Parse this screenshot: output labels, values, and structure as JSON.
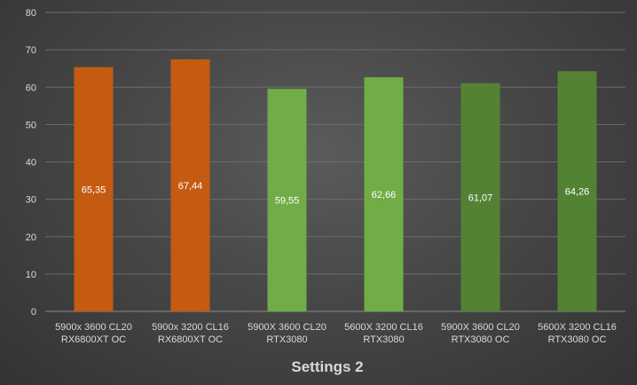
{
  "chart_data": {
    "type": "bar",
    "title": "Settings 2",
    "xlabel": "",
    "ylabel": "",
    "ylim": [
      0,
      80
    ],
    "yticks": [
      0,
      10,
      20,
      30,
      40,
      50,
      60,
      70,
      80
    ],
    "grid": true,
    "legend": "none",
    "categories": [
      [
        "5900x 3600 CL20",
        "RX6800XT OC"
      ],
      [
        "5900x 3200 CL16",
        "RX6800XT OC"
      ],
      [
        "5900X 3600 CL20",
        "RTX3080"
      ],
      [
        "5600X 3200 CL16",
        "RTX3080"
      ],
      [
        "5900X 3600 CL20",
        "RTX3080 OC"
      ],
      [
        "5600X 3200 CL16",
        "RTX3080 OC"
      ]
    ],
    "values": [
      65.35,
      67.44,
      59.55,
      62.66,
      61.07,
      64.26
    ],
    "data_labels": [
      "65,35",
      "67,44",
      "59,55",
      "62,66",
      "61,07",
      "64,26"
    ],
    "bar_colors": [
      "#c55a11",
      "#c55a11",
      "#70ad47",
      "#70ad47",
      "#548235",
      "#548235"
    ],
    "label_color": "#d9d9d9",
    "gridline_color": "#6b6b6b"
  }
}
